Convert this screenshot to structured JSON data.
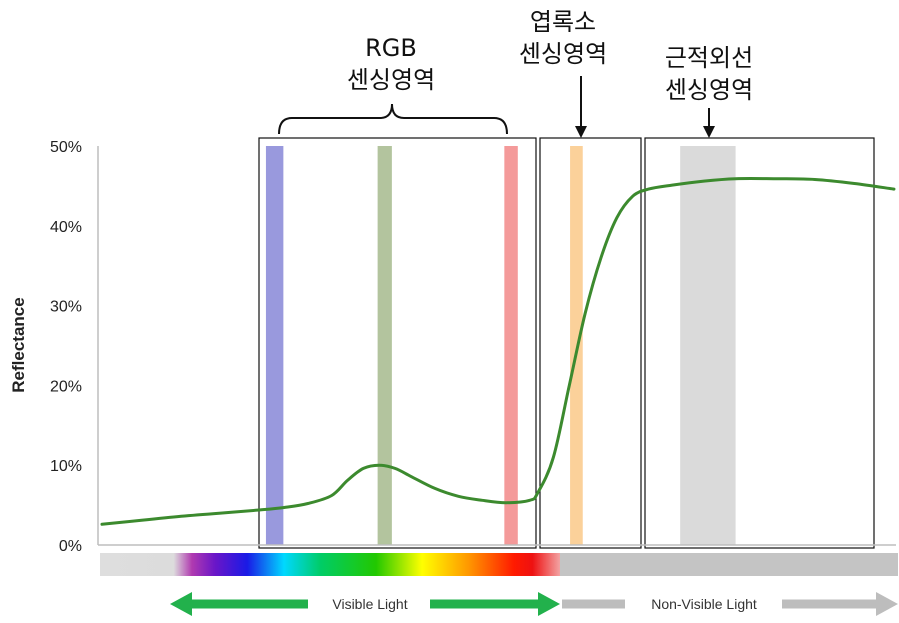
{
  "chart_data": {
    "type": "line",
    "title": "",
    "xlabel": "",
    "ylabel": "Reflectance",
    "ylim": [
      0,
      50
    ],
    "yticks": [
      "0%",
      "10%",
      "20%",
      "30%",
      "40%",
      "50%"
    ],
    "grid": false,
    "series": [
      {
        "points": [
          [
            0,
            2.6
          ],
          [
            5,
            3.1
          ],
          [
            10,
            3.6
          ],
          [
            15,
            4.0
          ],
          [
            20,
            4.4
          ],
          [
            23,
            4.7
          ],
          [
            26,
            5.2
          ],
          [
            29,
            6.2
          ],
          [
            31,
            8.1
          ],
          [
            33,
            9.6
          ],
          [
            35,
            10.0
          ],
          [
            37,
            9.6
          ],
          [
            39,
            8.6
          ],
          [
            42,
            7.1
          ],
          [
            45,
            6.1
          ],
          [
            48,
            5.6
          ],
          [
            51,
            5.3
          ],
          [
            54,
            5.6
          ],
          [
            55,
            6.5
          ],
          [
            57,
            11
          ],
          [
            59,
            20
          ],
          [
            61,
            29
          ],
          [
            63,
            36
          ],
          [
            65,
            41
          ],
          [
            67,
            43.7
          ],
          [
            69,
            44.6
          ],
          [
            72,
            45.1
          ],
          [
            76,
            45.6
          ],
          [
            80,
            45.9
          ],
          [
            85,
            45.9
          ],
          [
            90,
            45.8
          ],
          [
            95,
            45.3
          ],
          [
            100,
            44.6
          ]
        ],
        "color": "#3c8a2e"
      }
    ],
    "bands": [
      {
        "name": "blue",
        "from": 20.7,
        "to": 22.9,
        "color": "#9999dd"
      },
      {
        "name": "green",
        "from": 34.8,
        "to": 36.6,
        "color": "#b3c49e"
      },
      {
        "name": "red",
        "from": 50.8,
        "to": 52.5,
        "color": "#f49a9a"
      },
      {
        "name": "red-edge",
        "from": 59.1,
        "to": 60.7,
        "color": "#fbd19a"
      },
      {
        "name": "nir",
        "from": 73.0,
        "to": 80.0,
        "color": "#dadada"
      }
    ],
    "annotations": [
      {
        "lines": [
          "RGB",
          "센싱영역"
        ]
      },
      {
        "lines": [
          "엽록소",
          "센싱영역"
        ]
      },
      {
        "lines": [
          "근적외선",
          "센싱영역"
        ]
      }
    ],
    "spectrum": {
      "visible_label": "Visible Light",
      "nonvisible_label": "Non-Visible Light"
    }
  }
}
